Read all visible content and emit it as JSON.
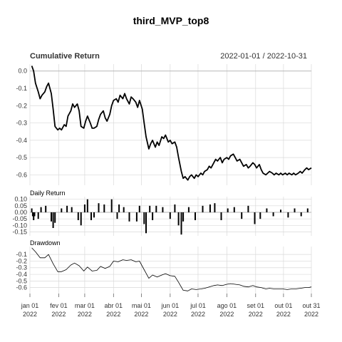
{
  "figure_title": "third_MVP_top8",
  "chart_data": [
    {
      "type": "line",
      "title": "Cumulative Return",
      "date_range": "2022-01-01 / 2022-10-31",
      "x_start": "2022-01-01",
      "x_end": "2022-10-31",
      "ylim": [
        -0.66,
        0.04
      ],
      "yticks": [
        0.0,
        -0.1,
        -0.2,
        -0.3,
        -0.4,
        -0.5,
        -0.6
      ],
      "ytick_labels": [
        "0.0",
        "-0.1",
        "-0.2",
        "-0.3",
        "-0.4",
        "-0.5",
        "-0.6"
      ],
      "grid": true,
      "points": [
        [
          "2022-01-03",
          0.03
        ],
        [
          "2022-01-05",
          0.0
        ],
        [
          "2022-01-07",
          -0.07
        ],
        [
          "2022-01-10",
          -0.12
        ],
        [
          "2022-01-12",
          -0.16
        ],
        [
          "2022-01-14",
          -0.14
        ],
        [
          "2022-01-17",
          -0.12
        ],
        [
          "2022-01-19",
          -0.09
        ],
        [
          "2022-01-21",
          -0.07
        ],
        [
          "2022-01-24",
          -0.13
        ],
        [
          "2022-01-26",
          -0.22
        ],
        [
          "2022-01-28",
          -0.32
        ],
        [
          "2022-01-31",
          -0.34
        ],
        [
          "2022-02-02",
          -0.33
        ],
        [
          "2022-02-04",
          -0.34
        ],
        [
          "2022-02-07",
          -0.31
        ],
        [
          "2022-02-09",
          -0.32
        ],
        [
          "2022-02-11",
          -0.26
        ],
        [
          "2022-02-14",
          -0.23
        ],
        [
          "2022-02-16",
          -0.19
        ],
        [
          "2022-02-18",
          -0.21
        ],
        [
          "2022-02-21",
          -0.19
        ],
        [
          "2022-02-23",
          -0.23
        ],
        [
          "2022-02-25",
          -0.32
        ],
        [
          "2022-02-28",
          -0.33
        ],
        [
          "2022-03-02",
          -0.29
        ],
        [
          "2022-03-04",
          -0.26
        ],
        [
          "2022-03-07",
          -0.3
        ],
        [
          "2022-03-09",
          -0.33
        ],
        [
          "2022-03-11",
          -0.33
        ],
        [
          "2022-03-14",
          -0.32
        ],
        [
          "2022-03-16",
          -0.28
        ],
        [
          "2022-03-18",
          -0.25
        ],
        [
          "2022-03-21",
          -0.23
        ],
        [
          "2022-03-23",
          -0.27
        ],
        [
          "2022-03-25",
          -0.29
        ],
        [
          "2022-03-28",
          -0.25
        ],
        [
          "2022-03-30",
          -0.2
        ],
        [
          "2022-04-01",
          -0.17
        ],
        [
          "2022-04-04",
          -0.16
        ],
        [
          "2022-04-06",
          -0.18
        ],
        [
          "2022-04-08",
          -0.14
        ],
        [
          "2022-04-11",
          -0.16
        ],
        [
          "2022-04-13",
          -0.13
        ],
        [
          "2022-04-15",
          -0.16
        ],
        [
          "2022-04-18",
          -0.19
        ],
        [
          "2022-04-20",
          -0.15
        ],
        [
          "2022-04-22",
          -0.16
        ],
        [
          "2022-04-25",
          -0.18
        ],
        [
          "2022-04-27",
          -0.21
        ],
        [
          "2022-04-29",
          -0.17
        ],
        [
          "2022-05-02",
          -0.22
        ],
        [
          "2022-05-04",
          -0.3
        ],
        [
          "2022-05-06",
          -0.38
        ],
        [
          "2022-05-09",
          -0.45
        ],
        [
          "2022-05-11",
          -0.42
        ],
        [
          "2022-05-13",
          -0.4
        ],
        [
          "2022-05-16",
          -0.44
        ],
        [
          "2022-05-18",
          -0.41
        ],
        [
          "2022-05-20",
          -0.43
        ],
        [
          "2022-05-23",
          -0.38
        ],
        [
          "2022-05-25",
          -0.39
        ],
        [
          "2022-05-27",
          -0.37
        ],
        [
          "2022-05-30",
          -0.41
        ],
        [
          "2022-06-01",
          -0.4
        ],
        [
          "2022-06-03",
          -0.42
        ],
        [
          "2022-06-06",
          -0.41
        ],
        [
          "2022-06-08",
          -0.44
        ],
        [
          "2022-06-10",
          -0.5
        ],
        [
          "2022-06-13",
          -0.58
        ],
        [
          "2022-06-15",
          -0.62
        ],
        [
          "2022-06-17",
          -0.61
        ],
        [
          "2022-06-20",
          -0.63
        ],
        [
          "2022-06-22",
          -0.61
        ],
        [
          "2022-06-24",
          -0.6
        ],
        [
          "2022-06-27",
          -0.62
        ],
        [
          "2022-06-29",
          -0.6
        ],
        [
          "2022-07-01",
          -0.61
        ],
        [
          "2022-07-04",
          -0.59
        ],
        [
          "2022-07-06",
          -0.6
        ],
        [
          "2022-07-08",
          -0.58
        ],
        [
          "2022-07-11",
          -0.57
        ],
        [
          "2022-07-13",
          -0.55
        ],
        [
          "2022-07-15",
          -0.56
        ],
        [
          "2022-07-18",
          -0.53
        ],
        [
          "2022-07-20",
          -0.51
        ],
        [
          "2022-07-22",
          -0.52
        ],
        [
          "2022-07-25",
          -0.5
        ],
        [
          "2022-07-27",
          -0.53
        ],
        [
          "2022-07-29",
          -0.51
        ],
        [
          "2022-08-01",
          -0.5
        ],
        [
          "2022-08-03",
          -0.51
        ],
        [
          "2022-08-05",
          -0.49
        ],
        [
          "2022-08-08",
          -0.48
        ],
        [
          "2022-08-10",
          -0.5
        ],
        [
          "2022-08-12",
          -0.52
        ],
        [
          "2022-08-15",
          -0.51
        ],
        [
          "2022-08-17",
          -0.53
        ],
        [
          "2022-08-19",
          -0.55
        ],
        [
          "2022-08-22",
          -0.54
        ],
        [
          "2022-08-24",
          -0.56
        ],
        [
          "2022-08-26",
          -0.55
        ],
        [
          "2022-08-29",
          -0.53
        ],
        [
          "2022-08-31",
          -0.54
        ],
        [
          "2022-09-02",
          -0.56
        ],
        [
          "2022-09-05",
          -0.54
        ],
        [
          "2022-09-07",
          -0.57
        ],
        [
          "2022-09-09",
          -0.59
        ],
        [
          "2022-09-12",
          -0.6
        ],
        [
          "2022-09-14",
          -0.59
        ],
        [
          "2022-09-16",
          -0.58
        ],
        [
          "2022-09-19",
          -0.59
        ],
        [
          "2022-09-21",
          -0.6
        ],
        [
          "2022-09-23",
          -0.59
        ],
        [
          "2022-09-26",
          -0.6
        ],
        [
          "2022-09-28",
          -0.59
        ],
        [
          "2022-09-30",
          -0.6
        ],
        [
          "2022-10-03",
          -0.59
        ],
        [
          "2022-10-05",
          -0.6
        ],
        [
          "2022-10-07",
          -0.59
        ],
        [
          "2022-10-10",
          -0.6
        ],
        [
          "2022-10-12",
          -0.59
        ],
        [
          "2022-10-14",
          -0.6
        ],
        [
          "2022-10-17",
          -0.59
        ],
        [
          "2022-10-19",
          -0.58
        ],
        [
          "2022-10-21",
          -0.59
        ],
        [
          "2022-10-24",
          -0.57
        ],
        [
          "2022-10-26",
          -0.56
        ],
        [
          "2022-10-28",
          -0.57
        ],
        [
          "2022-10-31",
          -0.56
        ]
      ]
    },
    {
      "type": "bar",
      "title": "Daily Return",
      "ylim": [
        -0.18,
        0.12
      ],
      "yticks": [
        0.1,
        0.05,
        0.0,
        -0.05,
        -0.1,
        -0.15
      ],
      "ytick_labels": [
        "0.10",
        "0.05",
        "0.00",
        "-0.05",
        "-0.10",
        "-0.15"
      ],
      "grid": true,
      "bars": [
        [
          "2022-01-03",
          0.03
        ],
        [
          "2022-01-04",
          -0.03
        ],
        [
          "2022-01-05",
          -0.06
        ],
        [
          "2022-01-06",
          -0.03
        ],
        [
          "2022-01-10",
          -0.05
        ],
        [
          "2022-01-13",
          0.04
        ],
        [
          "2022-01-18",
          0.05
        ],
        [
          "2022-01-24",
          -0.07
        ],
        [
          "2022-01-26",
          -0.12
        ],
        [
          "2022-01-28",
          -0.08
        ],
        [
          "2022-02-04",
          0.03
        ],
        [
          "2022-02-10",
          0.05
        ],
        [
          "2022-02-15",
          0.04
        ],
        [
          "2022-02-22",
          -0.06
        ],
        [
          "2022-02-25",
          -0.1
        ],
        [
          "2022-03-01",
          0.06
        ],
        [
          "2022-03-04",
          0.1
        ],
        [
          "2022-03-08",
          -0.06
        ],
        [
          "2022-03-11",
          -0.04
        ],
        [
          "2022-03-16",
          0.07
        ],
        [
          "2022-03-22",
          0.06
        ],
        [
          "2022-03-30",
          0.1
        ],
        [
          "2022-04-05",
          -0.05
        ],
        [
          "2022-04-07",
          0.06
        ],
        [
          "2022-04-12",
          0.04
        ],
        [
          "2022-04-18",
          -0.07
        ],
        [
          "2022-04-26",
          -0.07
        ],
        [
          "2022-04-29",
          0.05
        ],
        [
          "2022-05-04",
          -0.09
        ],
        [
          "2022-05-06",
          -0.16
        ],
        [
          "2022-05-10",
          0.05
        ],
        [
          "2022-05-13",
          -0.06
        ],
        [
          "2022-05-17",
          0.05
        ],
        [
          "2022-05-24",
          0.04
        ],
        [
          "2022-06-01",
          -0.05
        ],
        [
          "2022-06-06",
          0.06
        ],
        [
          "2022-06-10",
          -0.1
        ],
        [
          "2022-06-13",
          -0.17
        ],
        [
          "2022-06-15",
          -0.07
        ],
        [
          "2022-06-21",
          0.04
        ],
        [
          "2022-06-28",
          -0.06
        ],
        [
          "2022-07-06",
          0.05
        ],
        [
          "2022-07-14",
          0.06
        ],
        [
          "2022-07-19",
          0.07
        ],
        [
          "2022-07-26",
          -0.06
        ],
        [
          "2022-08-02",
          0.03
        ],
        [
          "2022-08-09",
          0.04
        ],
        [
          "2022-08-17",
          -0.05
        ],
        [
          "2022-08-24",
          0.05
        ],
        [
          "2022-08-31",
          -0.09
        ],
        [
          "2022-09-06",
          -0.05
        ],
        [
          "2022-09-13",
          0.03
        ],
        [
          "2022-09-20",
          -0.03
        ],
        [
          "2022-09-28",
          0.02
        ],
        [
          "2022-10-06",
          -0.04
        ],
        [
          "2022-10-13",
          0.03
        ],
        [
          "2022-10-20",
          -0.03
        ],
        [
          "2022-10-27",
          0.03
        ]
      ]
    },
    {
      "type": "line",
      "title": "Drawdown",
      "ylim": [
        -0.69,
        0.02
      ],
      "yticks": [
        -0.1,
        -0.2,
        -0.3,
        -0.4,
        -0.5,
        -0.6
      ],
      "ytick_labels": [
        "-0.1",
        "-0.2",
        "-0.3",
        "-0.4",
        "-0.5",
        "-0.6"
      ],
      "grid": true,
      "points": [
        [
          "2022-01-03",
          0.0
        ],
        [
          "2022-01-07",
          -0.06
        ],
        [
          "2022-01-12",
          -0.15
        ],
        [
          "2022-01-17",
          -0.15
        ],
        [
          "2022-01-21",
          -0.1
        ],
        [
          "2022-01-26",
          -0.24
        ],
        [
          "2022-01-31",
          -0.36
        ],
        [
          "2022-02-04",
          -0.36
        ],
        [
          "2022-02-09",
          -0.33
        ],
        [
          "2022-02-14",
          -0.26
        ],
        [
          "2022-02-18",
          -0.23
        ],
        [
          "2022-02-23",
          -0.27
        ],
        [
          "2022-02-28",
          -0.35
        ],
        [
          "2022-03-04",
          -0.29
        ],
        [
          "2022-03-09",
          -0.35
        ],
        [
          "2022-03-14",
          -0.34
        ],
        [
          "2022-03-18",
          -0.28
        ],
        [
          "2022-03-23",
          -0.31
        ],
        [
          "2022-03-28",
          -0.28
        ],
        [
          "2022-04-01",
          -0.2
        ],
        [
          "2022-04-06",
          -0.21
        ],
        [
          "2022-04-11",
          -0.18
        ],
        [
          "2022-04-15",
          -0.19
        ],
        [
          "2022-04-20",
          -0.18
        ],
        [
          "2022-04-25",
          -0.21
        ],
        [
          "2022-04-29",
          -0.2
        ],
        [
          "2022-05-04",
          -0.33
        ],
        [
          "2022-05-09",
          -0.46
        ],
        [
          "2022-05-13",
          -0.41
        ],
        [
          "2022-05-18",
          -0.44
        ],
        [
          "2022-05-23",
          -0.41
        ],
        [
          "2022-05-27",
          -0.39
        ],
        [
          "2022-06-01",
          -0.42
        ],
        [
          "2022-06-06",
          -0.43
        ],
        [
          "2022-06-10",
          -0.52
        ],
        [
          "2022-06-15",
          -0.64
        ],
        [
          "2022-06-20",
          -0.65
        ],
        [
          "2022-06-24",
          -0.62
        ],
        [
          "2022-06-29",
          -0.63
        ],
        [
          "2022-07-04",
          -0.62
        ],
        [
          "2022-07-08",
          -0.61
        ],
        [
          "2022-07-13",
          -0.59
        ],
        [
          "2022-07-18",
          -0.57
        ],
        [
          "2022-07-22",
          -0.56
        ],
        [
          "2022-07-27",
          -0.57
        ],
        [
          "2022-08-01",
          -0.55
        ],
        [
          "2022-08-05",
          -0.54
        ],
        [
          "2022-08-10",
          -0.55
        ],
        [
          "2022-08-15",
          -0.56
        ],
        [
          "2022-08-19",
          -0.58
        ],
        [
          "2022-08-24",
          -0.59
        ],
        [
          "2022-08-29",
          -0.57
        ],
        [
          "2022-09-02",
          -0.59
        ],
        [
          "2022-09-07",
          -0.6
        ],
        [
          "2022-09-12",
          -0.62
        ],
        [
          "2022-09-16",
          -0.61
        ],
        [
          "2022-09-21",
          -0.62
        ],
        [
          "2022-09-26",
          -0.62
        ],
        [
          "2022-09-30",
          -0.62
        ],
        [
          "2022-10-05",
          -0.63
        ],
        [
          "2022-10-10",
          -0.62
        ],
        [
          "2022-10-14",
          -0.62
        ],
        [
          "2022-10-19",
          -0.61
        ],
        [
          "2022-10-24",
          -0.6
        ],
        [
          "2022-10-28",
          -0.6
        ],
        [
          "2022-10-31",
          -0.59
        ]
      ]
    }
  ],
  "x_axis": {
    "ticks": [
      {
        "date": "2022-01-01",
        "month": "jan 01",
        "year": "2022"
      },
      {
        "date": "2022-02-01",
        "month": "fev 01",
        "year": "2022"
      },
      {
        "date": "2022-03-01",
        "month": "mar 01",
        "year": "2022"
      },
      {
        "date": "2022-04-01",
        "month": "abr 01",
        "year": "2022"
      },
      {
        "date": "2022-05-01",
        "month": "mai 01",
        "year": "2022"
      },
      {
        "date": "2022-06-01",
        "month": "jun 01",
        "year": "2022"
      },
      {
        "date": "2022-07-01",
        "month": "jul 01",
        "year": "2022"
      },
      {
        "date": "2022-08-01",
        "month": "ago 01",
        "year": "2022"
      },
      {
        "date": "2022-09-01",
        "month": "set 01",
        "year": "2022"
      },
      {
        "date": "2022-10-01",
        "month": "out 01",
        "year": "2022"
      },
      {
        "date": "2022-10-31",
        "month": "out 31",
        "year": "2022"
      }
    ]
  },
  "colors": {
    "line": "#000000",
    "grid": "#d9d9d9",
    "zero": "#b3b3b3"
  }
}
